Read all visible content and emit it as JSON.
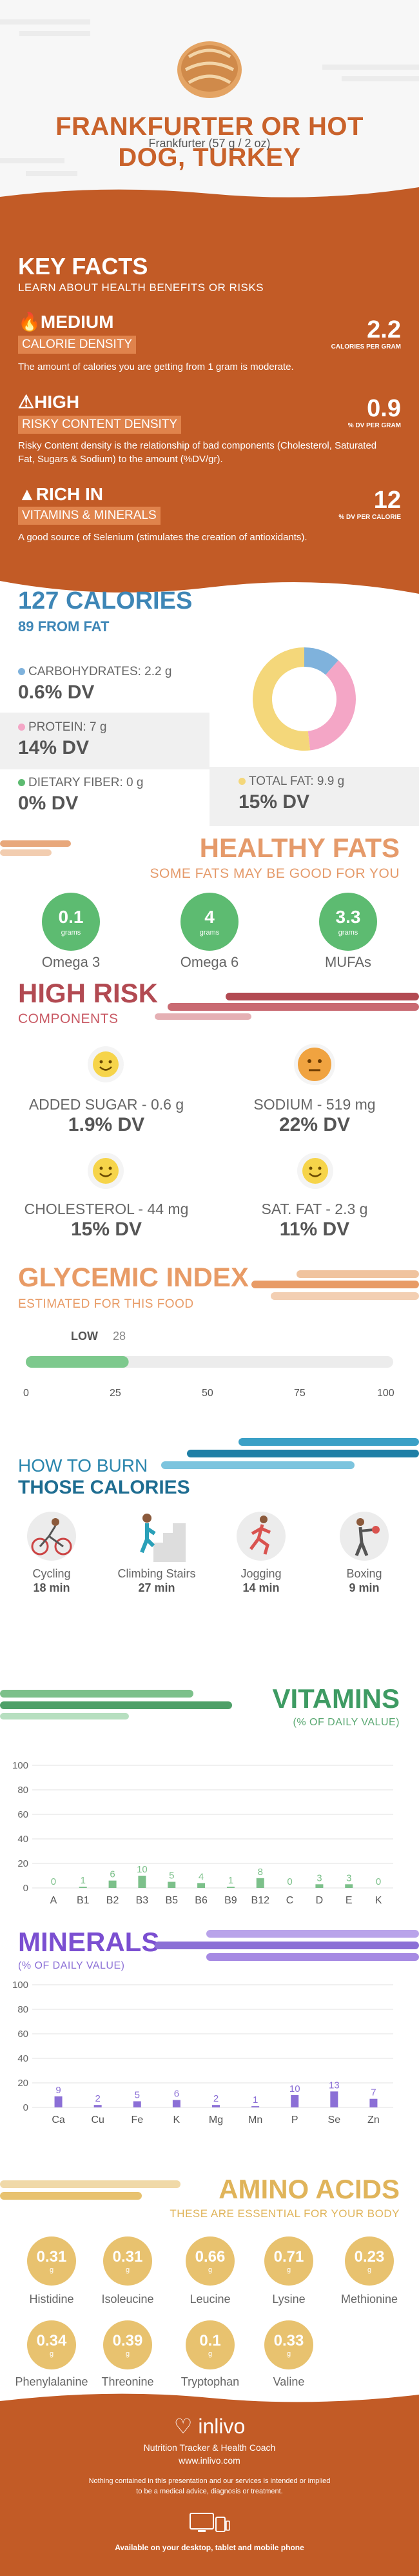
{
  "header": {
    "title_line1": "FRANKFURTER OR HOT",
    "title_line2": "DOG, TURKEY",
    "serving": "Frankfurter (57 g / 2 oz)"
  },
  "key_facts": {
    "heading": "KEY FACTS",
    "subheading": "LEARN ABOUT HEALTH BENEFITS OR RISKS",
    "items": [
      {
        "level": "MEDIUM",
        "tag": "CALORIE DENSITY",
        "desc": "The amount of calories you are getting from 1 gram is moderate.",
        "value": "2.2",
        "unit": "CALORIES PER GRAM"
      },
      {
        "level": "HIGH",
        "tag": "RISKY CONTENT DENSITY",
        "desc": "Risky Content density is the relationship of bad components (Cholesterol, Saturated Fat, Sugars & Sodium) to the amount (%DV/gr).",
        "value": "0.9",
        "unit": "% DV PER GRAM"
      },
      {
        "level": "RICH  IN",
        "tag": "VITAMINS & MINERALS",
        "desc": "A good source of Selenium (stimulates the creation of antioxidants).",
        "value": "12",
        "unit": "% DV PER CALORIE"
      }
    ]
  },
  "calories": {
    "heading": "127 CALORIES",
    "subheading": "89 FROM FAT",
    "nutrients": [
      {
        "label": "CARBOHYDRATES: 2.2 g",
        "dv": "0.6% DV",
        "color": "#7fb2dc"
      },
      {
        "label": "PROTEIN: 7 g",
        "dv": "14% DV",
        "color": "#f4a6c6"
      },
      {
        "label": "DIETARY FIBER: 0 g",
        "dv": "0% DV",
        "color": "#5dbb71"
      },
      {
        "label": "TOTAL FAT: 9.9 g",
        "dv": "15% DV",
        "color": "#f4d77a"
      }
    ],
    "donut": [
      2.2,
      7,
      9.9
    ]
  },
  "healthy_fats": {
    "heading": "HEALTHY FATS",
    "subheading": "SOME FATS MAY BE GOOD FOR YOU",
    "items": [
      {
        "value": "0.1",
        "unit": "grams",
        "label": "Omega 3"
      },
      {
        "value": "4",
        "unit": "grams",
        "label": "Omega 6"
      },
      {
        "value": "3.3",
        "unit": "grams",
        "label": "MUFAs"
      }
    ]
  },
  "high_risk": {
    "heading": "HIGH RISK",
    "subheading": "COMPONENTS",
    "items": [
      {
        "label": "ADDED SUGAR - 0.6 g",
        "dv": "1.9% DV",
        "mood": "happy"
      },
      {
        "label": "SODIUM - 519 mg",
        "dv": "22% DV",
        "mood": "neutral"
      },
      {
        "label": "CHOLESTEROL - 44 mg",
        "dv": "15% DV",
        "mood": "happy"
      },
      {
        "label": "SAT. FAT - 2.3 g",
        "dv": "11% DV",
        "mood": "happy"
      }
    ]
  },
  "glycemic": {
    "heading": "GLYCEMIC INDEX",
    "subheading": "ESTIMATED FOR THIS FOOD",
    "level": "LOW",
    "value": "28",
    "value_num": 28,
    "ticks": [
      "0",
      "25",
      "50",
      "75",
      "100"
    ]
  },
  "burn": {
    "heading1": "HOW TO BURN",
    "heading2": "THOSE CALORIES",
    "activities": [
      {
        "label": "Cycling",
        "time": "18 min",
        "icon": "cycling-icon"
      },
      {
        "label": "Climbing Stairs",
        "time": "27 min",
        "icon": "stairs-icon"
      },
      {
        "label": "Jogging",
        "time": "14 min",
        "icon": "jogging-icon"
      },
      {
        "label": "Boxing",
        "time": "9 min",
        "icon": "boxing-icon"
      }
    ]
  },
  "vitamins": {
    "heading": "VITAMINS",
    "subheading": "(% OF DAILY VALUE)",
    "chart_data": {
      "type": "bar",
      "categories": [
        "A",
        "B1",
        "B2",
        "B3",
        "B5",
        "B6",
        "B9",
        "B12",
        "C",
        "D",
        "E",
        "K"
      ],
      "values": [
        0,
        1,
        6,
        10,
        5,
        4,
        1,
        8,
        0,
        3,
        3,
        0
      ],
      "ylim": [
        0,
        100
      ],
      "yticks": [
        "0",
        "20",
        "40",
        "60",
        "80",
        "100"
      ],
      "color": "#7cc08a"
    }
  },
  "minerals": {
    "heading": "MINERALS",
    "subheading": "(% OF DAILY VALUE)",
    "chart_data": {
      "type": "bar",
      "categories": [
        "Ca",
        "Cu",
        "Fe",
        "K",
        "Mg",
        "Mn",
        "P",
        "Se",
        "Zn"
      ],
      "values": [
        9,
        2,
        5,
        6,
        2,
        1,
        10,
        13,
        7
      ],
      "ylim": [
        0,
        100
      ],
      "yticks": [
        "0",
        "20",
        "40",
        "60",
        "80",
        "100"
      ],
      "color": "#8b6fd6"
    }
  },
  "amino": {
    "heading": "AMINO ACIDS",
    "subheading": "THESE ARE ESSENTIAL FOR YOUR BODY",
    "items": [
      {
        "value": "0.31",
        "unit": "g",
        "label": "Histidine"
      },
      {
        "value": "0.31",
        "unit": "g",
        "label": "Isoleucine"
      },
      {
        "value": "0.66",
        "unit": "g",
        "label": "Leucine"
      },
      {
        "value": "0.71",
        "unit": "g",
        "label": "Lysine"
      },
      {
        "value": "0.23",
        "unit": "g",
        "label": "Methionine"
      },
      {
        "value": "0.34",
        "unit": "g",
        "label": "Phenylalanine"
      },
      {
        "value": "0.39",
        "unit": "g",
        "label": "Threonine"
      },
      {
        "value": "0.1",
        "unit": "g",
        "label": "Tryptophan"
      },
      {
        "value": "0.33",
        "unit": "g",
        "label": "Valine"
      }
    ]
  },
  "footer": {
    "brand": "inlivo",
    "tagline": "Nutrition Tracker & Health Coach",
    "url": "www.inlivo.com",
    "disclaimer1": "Nothing contained in this presentation and our services is intended or implied",
    "disclaimer2": "to be a medical advice, diagnosis or treatment.",
    "available": "Available on your desktop, tablet and mobile phone"
  }
}
